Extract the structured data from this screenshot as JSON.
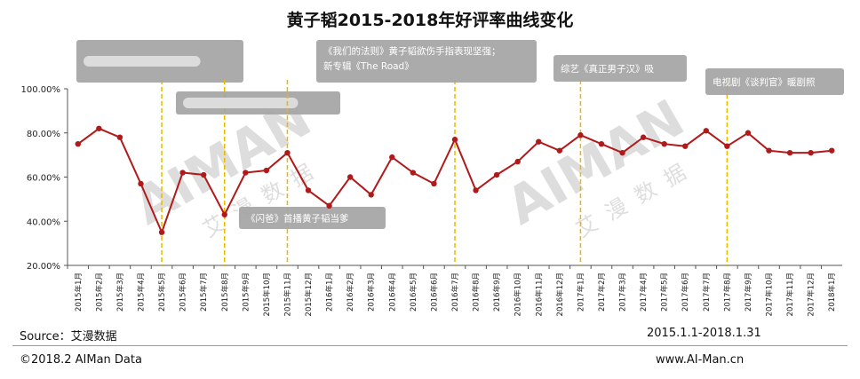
{
  "chart_data": {
    "type": "line",
    "title": "黄子韬2015-2018年好评率曲线变化",
    "x": [
      "2015年1月",
      "2015年2月",
      "2015年3月",
      "2015年4月",
      "2015年5月",
      "2015年6月",
      "2015年7月",
      "2015年8月",
      "2015年9月",
      "2015年10月",
      "2015年11月",
      "2015年12月",
      "2016年1月",
      "2016年2月",
      "2016年3月",
      "2016年4月",
      "2016年5月",
      "2016年6月",
      "2016年7月",
      "2016年8月",
      "2016年9月",
      "2016年10月",
      "2016年11月",
      "2016年12月",
      "2017年1月",
      "2017年2月",
      "2017年3月",
      "2017年4月",
      "2017年5月",
      "2017年6月",
      "2017年7月",
      "2017年8月",
      "2017年9月",
      "2017年10月",
      "2017年11月",
      "2017年12月",
      "2018年1月"
    ],
    "series": [
      {
        "values": [
          75,
          82,
          78,
          57,
          35,
          62,
          61,
          43,
          62,
          63,
          71,
          54,
          47,
          60,
          52,
          69,
          62,
          57,
          77,
          54,
          61,
          67,
          76,
          72,
          79,
          75,
          71,
          78,
          75,
          74,
          81,
          74,
          80,
          72,
          71,
          71,
          72
        ]
      }
    ],
    "yticks": [
      "20.00%",
      "40.00%",
      "60.00%",
      "80.00%",
      "100.00%"
    ],
    "ylim": [
      20,
      100
    ],
    "ylabel": "",
    "xlabel": "",
    "colors": {
      "line": "#b01a1a",
      "marker": "#b01a1a",
      "event": "#e8b800",
      "callout": "#a4a4a4",
      "callout_text": "#ffffff",
      "axis": "#555555"
    },
    "annotations": [
      {
        "x": "2015年5月",
        "text": "",
        "blurred": true
      },
      {
        "x": "2015年8月",
        "text": "",
        "blurred": true
      },
      {
        "x": "2015年11月",
        "text": "《闪爸》首播黄子韬当爹"
      },
      {
        "x": "2016年7月",
        "text": "《我们的法则》黄子韬欲伤手指表现坚强；新专辑《The Road》"
      },
      {
        "x": "2017年1月",
        "text": "综艺《真正男子汉》吸"
      },
      {
        "x": "2017年8月",
        "text": "电视剧《谈判官》暖剧照"
      }
    ],
    "grid": false,
    "legend": "none"
  },
  "watermark": {
    "text": "AIMAN",
    "sub": "艾漫数据"
  },
  "footer": {
    "source": "Source：艾漫数据",
    "range": "2015.1.1-2018.1.31",
    "copyright": "©2018.2  AIMan  Data",
    "website": "www.AI-Man.cn"
  }
}
